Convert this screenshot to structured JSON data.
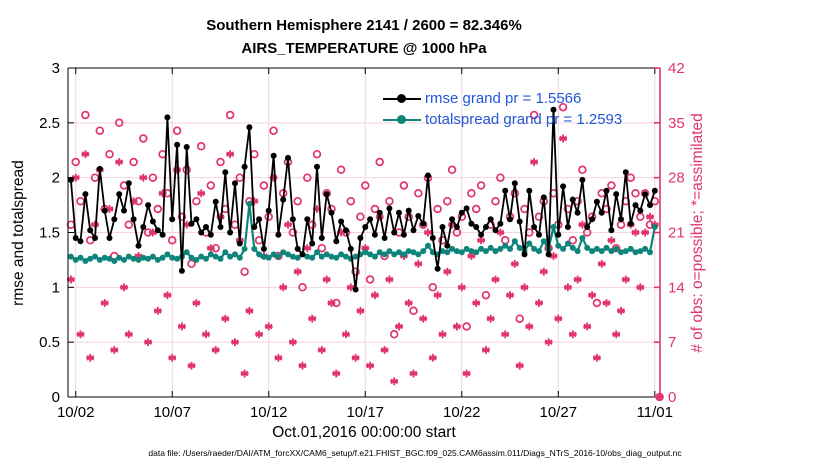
{
  "header": {
    "title_line1": "Southern Hemisphere 2141 / 2600 = 82.346%",
    "title_line2": "AIRS_TEMPERATURE @ 1000 hPa"
  },
  "axes": {
    "ylabel_left": "rmse and totalspread",
    "ylabel_right": "# of obs: o=possible; *=assimilated",
    "xlabel": "Oct.01,2016 00:00:00 start"
  },
  "legend": {
    "text_color": "#2257db",
    "entries": [
      {
        "label": "rmse grand pr = 1.5566",
        "color": "#000000"
      },
      {
        "label": "totalspread grand pr = 1.2593",
        "color": "#0d857b"
      }
    ]
  },
  "footer": {
    "text": "data file: /Users/raeder/DAI/ATM_forcXX/CAM6_setup/f.e21.FHIST_BGC.f09_025.CAM6assim.011/Diags_NTrS_2016-10/obs_diag_output.nc"
  },
  "colors": {
    "rmse": "#000000",
    "totalspread": "#0d857b",
    "obs": "#e0346c",
    "grid": "#f3d3de",
    "frame": "#000000"
  },
  "chart_data": {
    "type": "line",
    "title": "Southern Hemisphere 2141 / 2600 = 82.346% | AIRS_TEMPERATURE @ 1000 hPa",
    "x_axis": {
      "start_day": 1.75,
      "step_days": 0.25,
      "xlim_days": [
        1.6,
        32.27
      ],
      "tick_days": [
        2,
        7,
        12,
        17,
        22,
        27,
        32
      ],
      "tick_labels": [
        "10/02",
        "10/07",
        "10/12",
        "10/17",
        "10/22",
        "10/27",
        "11/01"
      ]
    },
    "y_left": {
      "label": "rmse and totalspread",
      "lim": [
        0,
        3
      ],
      "ticks": [
        0,
        0.5,
        1,
        1.5,
        2,
        2.5,
        3
      ],
      "tick_labels": [
        "0",
        "0.5",
        "1",
        "1.5",
        "2",
        "2.5",
        "3"
      ]
    },
    "y_right": {
      "label": "# of obs: o=possible; *=assimilated",
      "lim": [
        0,
        42
      ],
      "ticks": [
        0,
        7,
        14,
        21,
        28,
        35,
        42
      ],
      "tick_labels": [
        "0",
        "7",
        "14",
        "21",
        "28",
        "35",
        "42"
      ]
    },
    "grid": true,
    "legend_position": "top-right-inside",
    "series": [
      {
        "name": "rmse",
        "axis": "left",
        "style": "line+dot",
        "color": "#000000",
        "values": [
          1.98,
          1.45,
          1.42,
          1.85,
          1.52,
          1.45,
          2.08,
          1.7,
          1.45,
          1.62,
          1.85,
          1.7,
          1.95,
          1.62,
          1.38,
          1.55,
          1.75,
          1.6,
          1.52,
          1.48,
          2.55,
          1.62,
          2.3,
          1.15,
          2.28,
          1.58,
          1.62,
          1.5,
          1.55,
          1.48,
          1.78,
          1.55,
          2.05,
          1.5,
          1.95,
          1.4,
          2.1,
          2.46,
          1.55,
          1.62,
          1.35,
          1.7,
          2.2,
          1.48,
          1.8,
          2.18,
          1.62,
          1.35,
          1.3,
          1.62,
          1.4,
          2.1,
          1.45,
          1.85,
          1.68,
          1.42,
          1.6,
          1.52,
          1.35,
          0.98,
          1.45,
          1.55,
          1.62,
          1.48,
          1.68,
          1.45,
          1.72,
          1.5,
          1.68,
          1.48,
          1.7,
          1.52,
          1.65,
          1.58,
          2.02,
          1.45,
          1.17,
          1.55,
          1.38,
          1.62,
          1.55,
          1.68,
          1.72,
          1.58,
          1.55,
          1.48,
          1.55,
          1.62,
          1.52,
          1.58,
          1.88,
          1.62,
          1.95,
          1.6,
          1.3,
          1.88,
          1.55,
          1.48,
          1.82,
          1.3,
          2.62,
          1.48,
          1.92,
          1.55,
          1.8,
          1.68,
          1.98,
          1.55,
          1.62,
          1.78,
          1.68,
          1.88,
          1.52,
          1.85,
          1.62,
          2.05,
          1.58,
          1.75,
          1.7,
          1.85,
          1.75,
          1.88,
          null
        ]
      },
      {
        "name": "totalspread",
        "axis": "left",
        "style": "line+dot",
        "color": "#0d857b",
        "values": [
          1.28,
          1.25,
          1.27,
          1.24,
          1.26,
          1.28,
          1.25,
          1.27,
          1.26,
          1.24,
          1.27,
          1.25,
          1.28,
          1.26,
          1.25,
          1.27,
          1.26,
          1.28,
          1.25,
          1.27,
          1.3,
          1.27,
          1.26,
          1.28,
          1.32,
          1.27,
          1.25,
          1.28,
          1.26,
          1.3,
          1.28,
          1.26,
          1.32,
          1.28,
          1.3,
          1.27,
          1.35,
          1.76,
          1.35,
          1.3,
          1.28,
          1.27,
          1.3,
          1.28,
          1.32,
          1.3,
          1.28,
          1.27,
          1.3,
          1.28,
          1.27,
          1.32,
          1.28,
          1.3,
          1.28,
          1.27,
          1.3,
          1.28,
          1.26,
          1.28,
          1.3,
          1.32,
          1.3,
          1.28,
          1.32,
          1.3,
          1.33,
          1.3,
          1.32,
          1.3,
          1.33,
          1.32,
          1.3,
          1.33,
          1.38,
          1.32,
          1.3,
          1.33,
          1.32,
          1.35,
          1.33,
          1.32,
          1.35,
          1.33,
          1.32,
          1.35,
          1.33,
          1.36,
          1.33,
          1.35,
          1.38,
          1.35,
          1.42,
          1.36,
          1.33,
          1.4,
          1.35,
          1.33,
          1.42,
          1.35,
          1.55,
          1.38,
          1.35,
          1.4,
          1.36,
          1.33,
          1.45,
          1.36,
          1.33,
          1.35,
          1.33,
          1.36,
          1.33,
          1.35,
          1.32,
          1.33,
          1.35,
          1.32,
          1.33,
          1.35,
          1.32,
          1.55,
          null
        ]
      },
      {
        "name": "possible_obs",
        "axis": "right",
        "style": "circle",
        "color": "#e0346c",
        "values": [
          22,
          30,
          25,
          36,
          20,
          28,
          34,
          24,
          31,
          18,
          35,
          27,
          22,
          30,
          25,
          33,
          21,
          28,
          24,
          31,
          26,
          20,
          34,
          23,
          29,
          17,
          25,
          32,
          21,
          27,
          19,
          30,
          24,
          36,
          22,
          28,
          16,
          25,
          31,
          20,
          27,
          23,
          34,
          18,
          26,
          30,
          21,
          25,
          14,
          28,
          22,
          31,
          19,
          26,
          24,
          12,
          29,
          21,
          25,
          16,
          23,
          27,
          15,
          24,
          30,
          18,
          25,
          8,
          21,
          27,
          23,
          11,
          26,
          22,
          28,
          14,
          24,
          20,
          25,
          29,
          21,
          23,
          9,
          26,
          24,
          27,
          13,
          22,
          25,
          28,
          20,
          23,
          26,
          10,
          24,
          21,
          36,
          23,
          25,
          19,
          26,
          22,
          37,
          24,
          20,
          25,
          29,
          21,
          23,
          12,
          26,
          24,
          27,
          19,
          22,
          25,
          28,
          26,
          23,
          26,
          22,
          25,
          0
        ]
      },
      {
        "name": "assimilated_obs",
        "axis": "right",
        "style": "asterisk",
        "color": "#e0346c",
        "values": [
          15,
          28,
          8,
          31,
          5,
          22,
          29,
          12,
          24,
          6,
          30,
          14,
          8,
          25,
          18,
          28,
          7,
          21,
          11,
          26,
          13,
          5,
          29,
          9,
          22,
          4,
          12,
          26,
          8,
          19,
          6,
          23,
          10,
          31,
          7,
          20,
          3,
          11,
          25,
          8,
          18,
          9,
          28,
          5,
          14,
          22,
          7,
          16,
          4,
          19,
          10,
          24,
          6,
          15,
          12,
          3,
          21,
          8,
          14,
          5,
          11,
          19,
          4,
          13,
          23,
          6,
          15,
          2,
          9,
          18,
          12,
          3,
          17,
          10,
          21,
          5,
          13,
          8,
          16,
          22,
          9,
          14,
          3,
          18,
          12,
          20,
          6,
          10,
          15,
          21,
          8,
          13,
          17,
          4,
          14,
          9,
          30,
          12,
          16,
          7,
          18,
          10,
          33,
          14,
          8,
          15,
          22,
          9,
          13,
          5,
          17,
          12,
          20,
          8,
          11,
          15,
          22,
          21,
          14,
          21,
          23,
          22,
          0
        ]
      }
    ]
  }
}
